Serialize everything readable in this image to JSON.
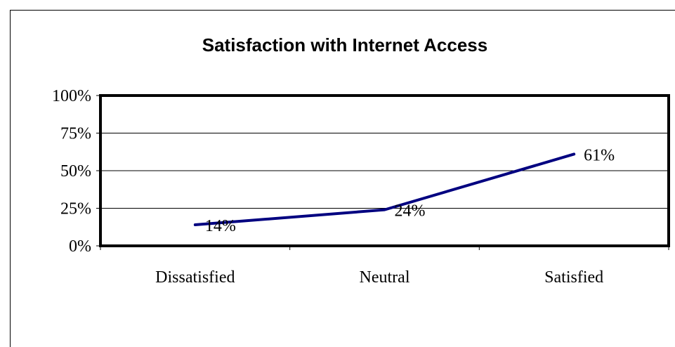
{
  "chart_data": {
    "type": "line",
    "title": "Satisfaction with Internet Access",
    "categories": [
      "Dissatisfied",
      "Neutral",
      "Satisfied"
    ],
    "series": [
      {
        "values": [
          14,
          24,
          61
        ],
        "data_labels": [
          "14%",
          "24%",
          "61%"
        ]
      }
    ],
    "ylim": [
      0,
      100
    ],
    "y_ticks": [
      0,
      25,
      50,
      75,
      100
    ],
    "y_tick_labels": [
      "0%",
      "25%",
      "50%",
      "75%",
      "100%"
    ],
    "xlabel": "",
    "ylabel": "",
    "grid": true,
    "legend": "none",
    "line_color": "#000080"
  }
}
